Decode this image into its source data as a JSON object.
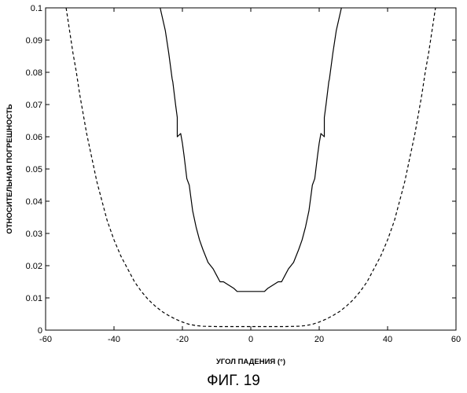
{
  "caption": "ФИГ. 19",
  "chart_data": {
    "type": "line",
    "title": "",
    "xlabel": "УГОЛ ПАДЕНИЯ (°)",
    "ylabel": "ОТНОСИТЕЛЬНАЯ ПОГРЕШНОСТЬ",
    "xlim": [
      -60,
      60
    ],
    "ylim": [
      0,
      0.1
    ],
    "xticks": [
      -60,
      -40,
      -20,
      0,
      20,
      40,
      60
    ],
    "yticks": [
      0,
      0.01,
      0.02,
      0.03,
      0.04,
      0.05,
      0.06,
      0.07,
      0.08,
      0.09,
      0.1
    ],
    "ytick_labels": [
      "0",
      "0.01",
      "0.02",
      "0.03",
      "0.04",
      "0.05",
      "0.06",
      "0.07",
      "0.08",
      "0.09",
      "0.1"
    ],
    "grid": false,
    "legend": "none",
    "series": [
      {
        "style": "solid",
        "color": "#000000",
        "x": [
          -26.5,
          -25,
          -24,
          -23,
          -22.8,
          -22,
          -21.5,
          -21.5,
          -20.5,
          -20,
          -19.5,
          -18.7,
          -18,
          -17.5,
          -17,
          -16,
          -15,
          -14,
          -12.5,
          -11,
          -10,
          -9,
          -8,
          -6.5,
          -5,
          -4,
          -3,
          3,
          4,
          5,
          6.5,
          8,
          9,
          10,
          11,
          12.5,
          14,
          15,
          16,
          17,
          17.5,
          18,
          18.7,
          19.5,
          20,
          20.5,
          21.5,
          21.5,
          22,
          22.8,
          23,
          24,
          25,
          26.5
        ],
        "y": [
          0.1,
          0.093,
          0.086,
          0.078,
          0.077,
          0.07,
          0.066,
          0.06,
          0.061,
          0.058,
          0.054,
          0.047,
          0.045,
          0.041,
          0.037,
          0.032,
          0.028,
          0.025,
          0.021,
          0.019,
          0.017,
          0.015,
          0.015,
          0.014,
          0.013,
          0.012,
          0.012,
          0.012,
          0.012,
          0.013,
          0.014,
          0.015,
          0.015,
          0.017,
          0.019,
          0.021,
          0.025,
          0.028,
          0.032,
          0.037,
          0.041,
          0.045,
          0.047,
          0.054,
          0.058,
          0.061,
          0.06,
          0.066,
          0.07,
          0.077,
          0.078,
          0.086,
          0.093,
          0.1
        ]
      },
      {
        "style": "dashed",
        "color": "#000000",
        "x": [
          -54,
          -53,
          -52,
          -51,
          -50,
          -49,
          -48,
          -47,
          -46,
          -45,
          -44,
          -43,
          -42,
          -41,
          -40,
          -38,
          -36,
          -34,
          -32,
          -30,
          -28,
          -26,
          -24,
          -22,
          -20,
          -18,
          -16,
          -14,
          -10,
          -5,
          0,
          5,
          10,
          14,
          16,
          18,
          20,
          22,
          24,
          26,
          28,
          30,
          32,
          34,
          36,
          38,
          40,
          41,
          42,
          43,
          44,
          45,
          46,
          47,
          48,
          49,
          50,
          51,
          52,
          53,
          54
        ],
        "y": [
          0.1,
          0.093,
          0.086,
          0.08,
          0.073,
          0.067,
          0.061,
          0.056,
          0.051,
          0.046,
          0.042,
          0.038,
          0.034,
          0.031,
          0.028,
          0.023,
          0.019,
          0.015,
          0.012,
          0.0095,
          0.0075,
          0.0058,
          0.0045,
          0.0034,
          0.0025,
          0.0018,
          0.0014,
          0.0012,
          0.0011,
          0.0011,
          0.0011,
          0.0011,
          0.0011,
          0.0012,
          0.0014,
          0.0018,
          0.0025,
          0.0034,
          0.0045,
          0.0058,
          0.0075,
          0.0095,
          0.012,
          0.015,
          0.019,
          0.023,
          0.028,
          0.031,
          0.034,
          0.038,
          0.042,
          0.046,
          0.051,
          0.056,
          0.061,
          0.067,
          0.073,
          0.08,
          0.086,
          0.093,
          0.1
        ]
      }
    ]
  }
}
